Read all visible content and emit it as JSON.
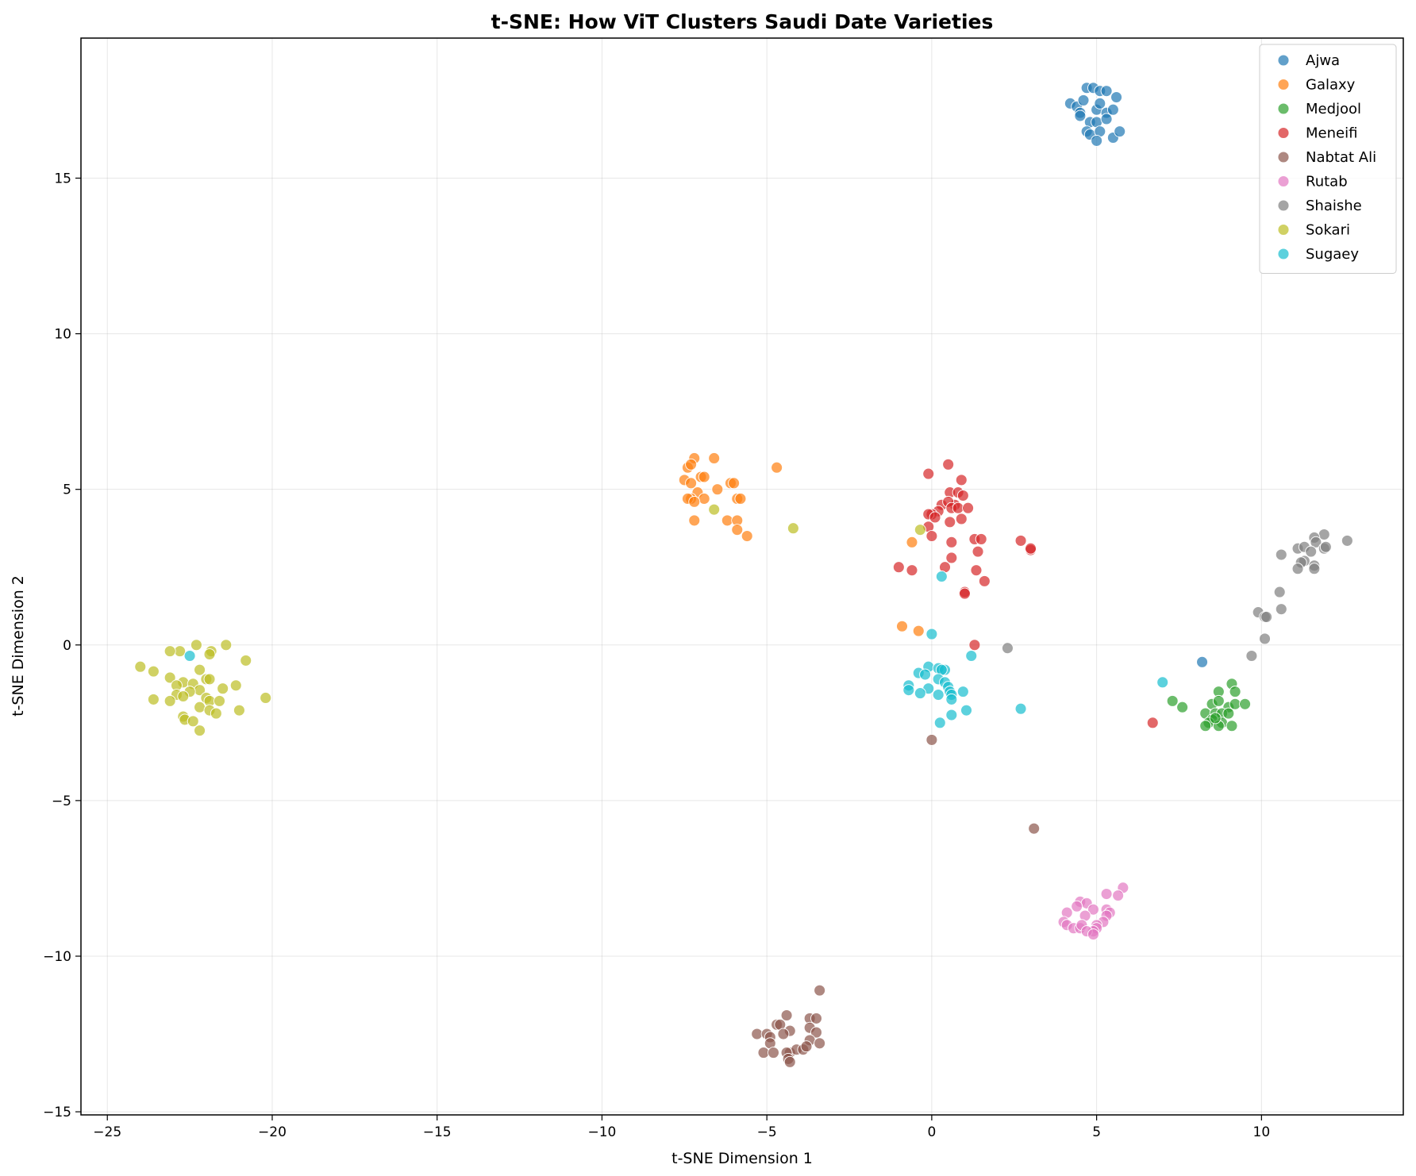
{
  "chart_data": {
    "type": "scatter",
    "title": "t-SNE: How ViT Clusters Saudi Date Varieties",
    "xlabel": "t-SNE Dimension 1",
    "ylabel": "t-SNE Dimension 2",
    "xlim": [
      -25.8,
      14.3
    ],
    "ylim": [
      -15.1,
      19.5
    ],
    "xticks": [
      -25,
      -20,
      -15,
      -10,
      -5,
      0,
      5,
      10
    ],
    "yticks": [
      -15,
      -10,
      -5,
      0,
      5,
      10,
      15
    ],
    "grid": true,
    "legend_position": "top-right",
    "series": [
      {
        "name": "Ajwa",
        "color": "#1f77b4",
        "points": [
          [
            4.2,
            17.4
          ],
          [
            4.4,
            17.3
          ],
          [
            4.5,
            17.1
          ],
          [
            4.6,
            17.5
          ],
          [
            4.7,
            17.9
          ],
          [
            4.9,
            17.9
          ],
          [
            5.1,
            17.8
          ],
          [
            5.3,
            17.8
          ],
          [
            5.6,
            17.6
          ],
          [
            5.0,
            17.2
          ],
          [
            5.1,
            17.4
          ],
          [
            5.3,
            17.1
          ],
          [
            5.5,
            17.2
          ],
          [
            4.8,
            16.8
          ],
          [
            5.0,
            16.8
          ],
          [
            5.3,
            16.9
          ],
          [
            4.7,
            16.5
          ],
          [
            4.8,
            16.4
          ],
          [
            5.1,
            16.5
          ],
          [
            5.0,
            16.2
          ],
          [
            5.5,
            16.3
          ],
          [
            5.7,
            16.5
          ],
          [
            4.5,
            17.0
          ],
          [
            8.2,
            -0.55
          ]
        ]
      },
      {
        "name": "Galaxy",
        "color": "#ff7f0e",
        "points": [
          [
            -7.4,
            5.7
          ],
          [
            -7.2,
            6.0
          ],
          [
            -6.6,
            6.0
          ],
          [
            -7.3,
            5.8
          ],
          [
            -7.5,
            5.3
          ],
          [
            -7.3,
            5.2
          ],
          [
            -7.0,
            5.4
          ],
          [
            -6.9,
            5.4
          ],
          [
            -6.1,
            5.2
          ],
          [
            -6.0,
            5.2
          ],
          [
            -4.7,
            5.7
          ],
          [
            -7.1,
            4.9
          ],
          [
            -7.3,
            4.7
          ],
          [
            -6.9,
            4.7
          ],
          [
            -7.4,
            4.7
          ],
          [
            -6.5,
            5.0
          ],
          [
            -5.9,
            4.7
          ],
          [
            -5.8,
            4.7
          ],
          [
            -7.2,
            4.0
          ],
          [
            -6.2,
            4.0
          ],
          [
            -5.9,
            4.0
          ],
          [
            -5.9,
            3.7
          ],
          [
            -5.6,
            3.5
          ],
          [
            -0.6,
            3.3
          ],
          [
            -0.9,
            0.6
          ],
          [
            -0.4,
            0.45
          ],
          [
            -7.2,
            4.6
          ]
        ]
      },
      {
        "name": "Medjool",
        "color": "#2ca02c",
        "points": [
          [
            9.1,
            -1.25
          ],
          [
            8.7,
            -1.5
          ],
          [
            9.2,
            -1.5
          ],
          [
            7.3,
            -1.8
          ],
          [
            7.6,
            -2.0
          ],
          [
            8.5,
            -1.9
          ],
          [
            8.7,
            -1.8
          ],
          [
            9.0,
            -2.0
          ],
          [
            9.2,
            -1.9
          ],
          [
            9.5,
            -1.9
          ],
          [
            8.3,
            -2.2
          ],
          [
            8.6,
            -2.2
          ],
          [
            8.8,
            -2.2
          ],
          [
            9.0,
            -2.2
          ],
          [
            8.5,
            -2.4
          ],
          [
            8.8,
            -2.5
          ],
          [
            8.4,
            -2.5
          ],
          [
            9.1,
            -2.6
          ],
          [
            8.7,
            -2.6
          ],
          [
            8.3,
            -2.6
          ],
          [
            8.6,
            -2.35
          ]
        ]
      },
      {
        "name": "Meneifi",
        "color": "#d62728",
        "points": [
          [
            0.5,
            5.8
          ],
          [
            -0.1,
            5.5
          ],
          [
            0.9,
            5.3
          ],
          [
            0.55,
            4.9
          ],
          [
            0.8,
            4.9
          ],
          [
            0.95,
            4.8
          ],
          [
            0.3,
            4.5
          ],
          [
            0.7,
            4.5
          ],
          [
            0.5,
            4.6
          ],
          [
            0.6,
            4.4
          ],
          [
            0.8,
            4.4
          ],
          [
            1.1,
            4.4
          ],
          [
            0.2,
            4.3
          ],
          [
            0.0,
            4.2
          ],
          [
            -0.1,
            4.2
          ],
          [
            0.1,
            4.1
          ],
          [
            0.55,
            3.95
          ],
          [
            0.9,
            4.05
          ],
          [
            -0.1,
            3.8
          ],
          [
            1.3,
            3.4
          ],
          [
            1.5,
            3.4
          ],
          [
            0.0,
            3.5
          ],
          [
            0.6,
            3.3
          ],
          [
            2.7,
            3.35
          ],
          [
            3.0,
            3.05
          ],
          [
            3.0,
            3.1
          ],
          [
            1.4,
            3.0
          ],
          [
            0.6,
            2.8
          ],
          [
            0.4,
            2.5
          ],
          [
            1.35,
            2.4
          ],
          [
            -1.0,
            2.5
          ],
          [
            -0.6,
            2.4
          ],
          [
            1.6,
            2.05
          ],
          [
            1.0,
            1.7
          ],
          [
            1.0,
            1.65
          ],
          [
            1.3,
            0.0
          ],
          [
            6.7,
            -2.5
          ]
        ]
      },
      {
        "name": "Nabtat Ali",
        "color": "#8c564b",
        "points": [
          [
            -3.4,
            -11.1
          ],
          [
            -4.4,
            -11.9
          ],
          [
            -3.7,
            -12.0
          ],
          [
            -3.5,
            -12.0
          ],
          [
            -4.7,
            -12.2
          ],
          [
            -4.6,
            -12.2
          ],
          [
            -3.7,
            -12.3
          ],
          [
            -3.5,
            -12.45
          ],
          [
            -4.3,
            -12.4
          ],
          [
            -4.5,
            -12.5
          ],
          [
            -5.3,
            -12.5
          ],
          [
            -5.0,
            -12.5
          ],
          [
            -4.9,
            -12.6
          ],
          [
            -3.7,
            -12.7
          ],
          [
            -4.9,
            -12.8
          ],
          [
            -3.4,
            -12.8
          ],
          [
            -5.1,
            -13.1
          ],
          [
            -4.8,
            -13.1
          ],
          [
            -4.3,
            -13.1
          ],
          [
            -4.1,
            -13.0
          ],
          [
            -3.9,
            -13.0
          ],
          [
            -3.8,
            -12.9
          ],
          [
            -4.4,
            -13.1
          ],
          [
            -4.35,
            -13.3
          ],
          [
            -4.3,
            -13.4
          ],
          [
            0.0,
            -3.05
          ],
          [
            3.1,
            -5.9
          ]
        ]
      },
      {
        "name": "Rutab",
        "color": "#e377c2",
        "points": [
          [
            5.8,
            -7.8
          ],
          [
            5.3,
            -8.0
          ],
          [
            5.65,
            -8.05
          ],
          [
            4.5,
            -8.25
          ],
          [
            4.7,
            -8.3
          ],
          [
            4.9,
            -8.5
          ],
          [
            5.3,
            -8.5
          ],
          [
            5.4,
            -8.6
          ],
          [
            4.1,
            -8.6
          ],
          [
            5.3,
            -8.7
          ],
          [
            4.65,
            -8.7
          ],
          [
            4.0,
            -8.9
          ],
          [
            4.1,
            -9.0
          ],
          [
            5.2,
            -8.9
          ],
          [
            4.3,
            -9.1
          ],
          [
            4.5,
            -9.1
          ],
          [
            4.55,
            -9.0
          ],
          [
            5.0,
            -9.0
          ],
          [
            5.0,
            -9.1
          ],
          [
            4.9,
            -9.2
          ],
          [
            4.7,
            -9.2
          ],
          [
            4.9,
            -9.3
          ],
          [
            4.4,
            -8.4
          ]
        ]
      },
      {
        "name": "Shaishe",
        "color": "#7f7f7f",
        "points": [
          [
            11.9,
            3.55
          ],
          [
            11.6,
            3.45
          ],
          [
            12.6,
            3.35
          ],
          [
            11.65,
            3.3
          ],
          [
            11.1,
            3.1
          ],
          [
            11.3,
            3.15
          ],
          [
            11.9,
            3.1
          ],
          [
            11.95,
            3.15
          ],
          [
            11.5,
            3.0
          ],
          [
            10.6,
            2.9
          ],
          [
            11.3,
            2.7
          ],
          [
            11.2,
            2.65
          ],
          [
            11.6,
            2.55
          ],
          [
            11.6,
            2.45
          ],
          [
            11.1,
            2.45
          ],
          [
            10.55,
            1.7
          ],
          [
            10.6,
            1.15
          ],
          [
            9.9,
            1.05
          ],
          [
            10.1,
            0.9
          ],
          [
            10.15,
            0.9
          ],
          [
            10.1,
            0.2
          ],
          [
            9.7,
            -0.35
          ],
          [
            2.3,
            -0.1
          ]
        ]
      },
      {
        "name": "Sokari",
        "color": "#bcbd22",
        "points": [
          [
            -21.4,
            0.0
          ],
          [
            -22.3,
            0.0
          ],
          [
            -22.8,
            -0.2
          ],
          [
            -23.1,
            -0.2
          ],
          [
            -21.85,
            -0.2
          ],
          [
            -21.9,
            -0.3
          ],
          [
            -20.8,
            -0.5
          ],
          [
            -24.0,
            -0.7
          ],
          [
            -23.6,
            -0.85
          ],
          [
            -22.2,
            -0.8
          ],
          [
            -23.1,
            -1.05
          ],
          [
            -22.0,
            -1.1
          ],
          [
            -21.9,
            -1.1
          ],
          [
            -22.7,
            -1.2
          ],
          [
            -22.4,
            -1.25
          ],
          [
            -21.1,
            -1.3
          ],
          [
            -22.9,
            -1.3
          ],
          [
            -21.5,
            -1.4
          ],
          [
            -22.2,
            -1.45
          ],
          [
            -22.5,
            -1.5
          ],
          [
            -22.9,
            -1.6
          ],
          [
            -22.7,
            -1.65
          ],
          [
            -22.0,
            -1.7
          ],
          [
            -23.6,
            -1.75
          ],
          [
            -21.9,
            -1.8
          ],
          [
            -21.6,
            -1.8
          ],
          [
            -20.2,
            -1.7
          ],
          [
            -23.1,
            -1.8
          ],
          [
            -22.2,
            -2.0
          ],
          [
            -21.9,
            -2.1
          ],
          [
            -21.7,
            -2.2
          ],
          [
            -21.0,
            -2.1
          ],
          [
            -22.7,
            -2.3
          ],
          [
            -22.65,
            -2.4
          ],
          [
            -22.4,
            -2.45
          ],
          [
            -22.2,
            -2.75
          ],
          [
            -6.6,
            4.35
          ],
          [
            -4.2,
            3.75
          ],
          [
            -0.35,
            3.7
          ]
        ]
      },
      {
        "name": "Sugaey",
        "color": "#17becf",
        "points": [
          [
            0.0,
            0.35
          ],
          [
            -0.1,
            -0.7
          ],
          [
            0.2,
            -0.75
          ],
          [
            0.4,
            -0.8
          ],
          [
            0.3,
            -0.8
          ],
          [
            -0.4,
            -0.9
          ],
          [
            -0.2,
            -0.95
          ],
          [
            0.2,
            -1.1
          ],
          [
            1.2,
            -0.35
          ],
          [
            -0.7,
            -1.3
          ],
          [
            0.4,
            -1.2
          ],
          [
            0.5,
            -1.35
          ],
          [
            0.55,
            -1.5
          ],
          [
            -0.7,
            -1.45
          ],
          [
            -0.1,
            -1.4
          ],
          [
            0.2,
            -1.6
          ],
          [
            -0.35,
            -1.55
          ],
          [
            0.6,
            -1.6
          ],
          [
            0.95,
            -1.5
          ],
          [
            0.6,
            -1.75
          ],
          [
            0.6,
            -2.25
          ],
          [
            1.05,
            -2.1
          ],
          [
            2.7,
            -2.05
          ],
          [
            0.25,
            -2.5
          ],
          [
            0.3,
            2.2
          ],
          [
            7.0,
            -1.2
          ],
          [
            -22.5,
            -0.35
          ]
        ]
      }
    ]
  }
}
